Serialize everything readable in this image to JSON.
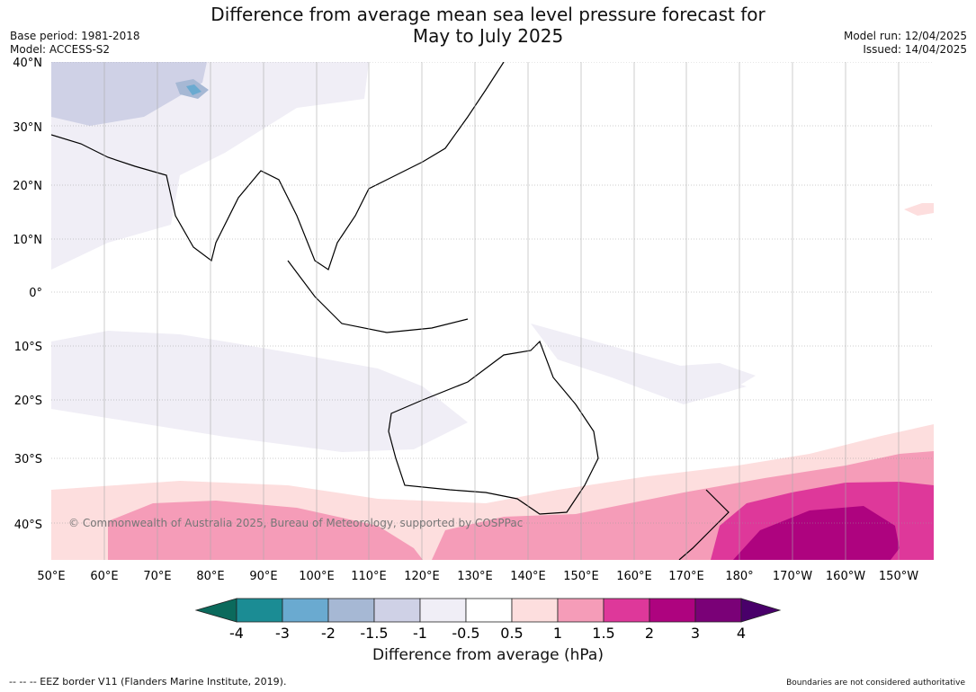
{
  "title_line1": "Difference from average mean sea level pressure forecast for",
  "title_line2": "May to July 2025",
  "base_period": "Base period: 1981-2018",
  "model": "Model: ACCESS-S2",
  "model_run": "Model run: 12/04/2025",
  "issued": "Issued: 14/04/2025",
  "copyright": "© Commonwealth of Australia 2025, Bureau of Meteorology, supported by COSPPac",
  "footer_left": "--  --  -- EEZ border V11 (Flanders Marine Institute, 2019).",
  "footer_right": "Boundaries are not considered authoritative",
  "lat_labels": [
    "40°N",
    "30°N",
    "20°N",
    "10°N",
    "0°",
    "10°S",
    "20°S",
    "30°S",
    "40°S"
  ],
  "lon_labels": [
    "50°E",
    "60°E",
    "70°E",
    "80°E",
    "90°E",
    "100°E",
    "110°E",
    "120°E",
    "130°E",
    "140°E",
    "150°E",
    "160°E",
    "170°E",
    "180°",
    "170°W",
    "160°W",
    "150°W"
  ],
  "colorbar": {
    "label": "Difference from average (hPa)",
    "ticks": [
      "-4",
      "-3",
      "-2",
      "-1.5",
      "-1",
      "-0.5",
      "0.5",
      "1",
      "1.5",
      "2",
      "3",
      "4"
    ],
    "colors": {
      "below_min": "#0b6a5c",
      "bin_-4_-3": "#1b8c94",
      "bin_-3_-2": "#6aaad0",
      "bin_-2_-1.5": "#a6b8d4",
      "bin_-1.5_-1": "#cfd1e6",
      "bin_-1_-0.5": "#f0eef6",
      "bin_-0.5_0.5": "#ffffff",
      "bin_0.5_1": "#fddede",
      "bin_1_1.5": "#f59cb8",
      "bin_1.5_2": "#de389a",
      "bin_2_3": "#ae037f",
      "bin_3_4": "#7a0177",
      "above_max": "#49006a"
    }
  }
}
